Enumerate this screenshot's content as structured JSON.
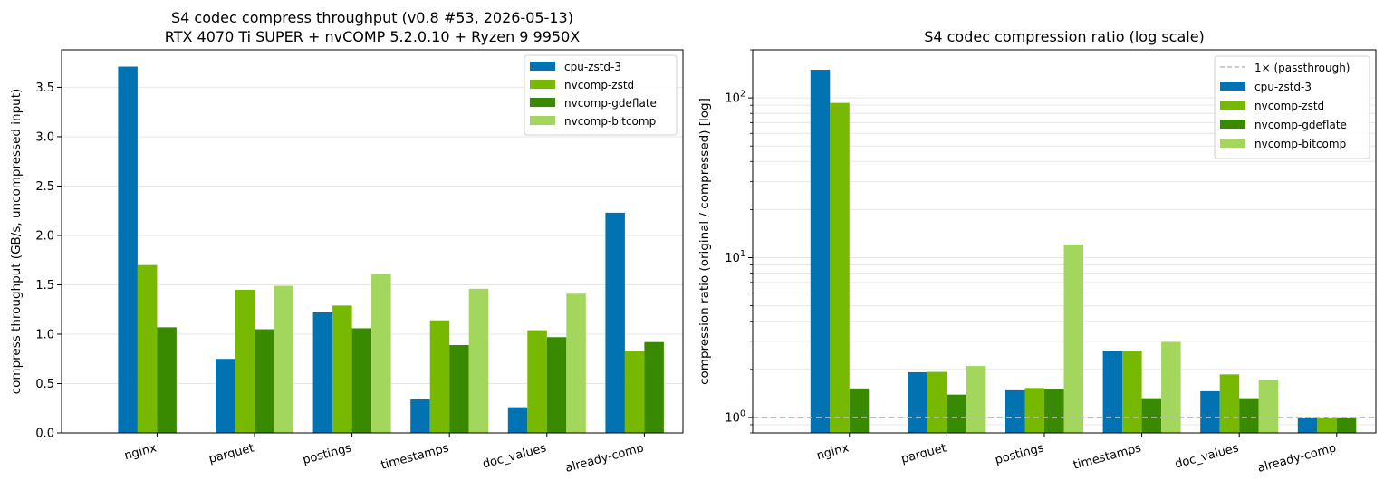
{
  "chart_data": [
    {
      "type": "bar",
      "title": "S4 codec compress throughput (v0.8 #53, 2026-05-13)\nRTX 4070 Ti SUPER + nvCOMP 5.2.0.10 + Ryzen 9 9950X",
      "title_lines": [
        "S4 codec compress throughput (v0.8 #53, 2026-05-13)",
        "RTX 4070 Ti SUPER + nvCOMP 5.2.0.10 + Ryzen 9 9950X"
      ],
      "xlabel": "",
      "ylabel": "compress throughput (GB/s, uncompressed input)",
      "ylim": [
        0,
        3.88
      ],
      "yscale": "linear",
      "yticks": [
        0.0,
        0.5,
        1.0,
        1.5,
        2.0,
        2.5,
        3.0,
        3.5
      ],
      "ytick_labels": [
        "0.0",
        "0.5",
        "1.0",
        "1.5",
        "2.0",
        "2.5",
        "3.0",
        "3.5"
      ],
      "grid": "y-major",
      "legend_position": "top-right",
      "categories": [
        "nginx",
        "parquet",
        "postings",
        "timestamps",
        "doc_values",
        "already-comp"
      ],
      "series": [
        {
          "name": "cpu-zstd-3",
          "color": "#0173b2",
          "values": [
            3.71,
            0.75,
            1.22,
            0.34,
            0.26,
            2.23
          ]
        },
        {
          "name": "nvcomp-zstd",
          "color": "#76b900",
          "values": [
            1.7,
            1.45,
            1.29,
            1.14,
            1.04,
            0.83
          ]
        },
        {
          "name": "nvcomp-gdeflate",
          "color": "#3a8a00",
          "values": [
            1.07,
            1.05,
            1.06,
            0.89,
            0.97,
            0.92
          ]
        },
        {
          "name": "nvcomp-bitcomp",
          "color": "#a3d65c",
          "values": [
            null,
            1.49,
            1.61,
            1.46,
            1.41,
            null
          ]
        }
      ]
    },
    {
      "type": "bar",
      "title": "S4 codec compression ratio (log scale)",
      "title_lines": [
        "S4 codec compression ratio (log scale)"
      ],
      "xlabel": "",
      "ylabel": "compression ratio (original / compressed)  [log]",
      "ylim": [
        0.8,
        200
      ],
      "yscale": "log",
      "yticks": [
        1,
        10,
        100
      ],
      "ytick_labels": [
        "10⁰",
        "10¹",
        "10²"
      ],
      "grid": "y-major-and-minor",
      "legend_position": "top-right",
      "reference_line": {
        "label": "1× (passthrough)",
        "value": 1,
        "color": "#bbbbbb"
      },
      "categories": [
        "nginx",
        "parquet",
        "postings",
        "timestamps",
        "doc_values",
        "already-comp"
      ],
      "series": [
        {
          "name": "cpu-zstd-3",
          "color": "#0173b2",
          "values": [
            150,
            1.92,
            1.48,
            2.62,
            1.46,
            1.0
          ]
        },
        {
          "name": "nvcomp-zstd",
          "color": "#76b900",
          "values": [
            93,
            1.93,
            1.53,
            2.62,
            1.86,
            1.0
          ]
        },
        {
          "name": "nvcomp-gdeflate",
          "color": "#3a8a00",
          "values": [
            1.52,
            1.39,
            1.51,
            1.32,
            1.32,
            1.0
          ]
        },
        {
          "name": "nvcomp-bitcomp",
          "color": "#a3d65c",
          "values": [
            null,
            2.1,
            12.1,
            2.97,
            1.72,
            null
          ]
        }
      ]
    }
  ]
}
